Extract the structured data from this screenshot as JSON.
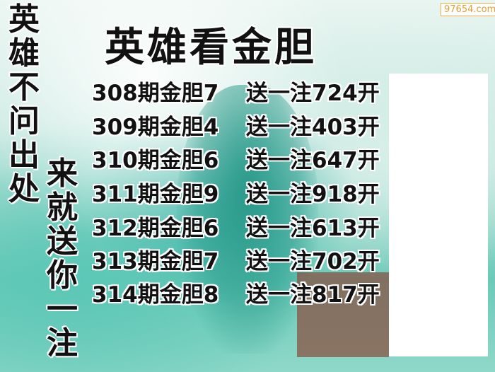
{
  "title": "英雄看金胆",
  "left_vertical": [
    "英",
    "雄",
    "不",
    "问",
    "出",
    "处"
  ],
  "right_vertical": [
    "来",
    "就",
    "送",
    "你",
    "一",
    "注"
  ],
  "rows": [
    {
      "a": "308期金胆7",
      "b": "送一注724开"
    },
    {
      "a": "309期金胆4",
      "b": "送一注403开"
    },
    {
      "a": "310期金胆6",
      "b": "送一注647开"
    },
    {
      "a": "311期金胆9",
      "b": "送一注918开"
    },
    {
      "a": "312期金胆6",
      "b": "送一注613开"
    },
    {
      "a": "313期金胆7",
      "b": "送一注702开"
    },
    {
      "a": "314期金胆8",
      "b": "送一注817开"
    }
  ],
  "watermark": "97654.com"
}
